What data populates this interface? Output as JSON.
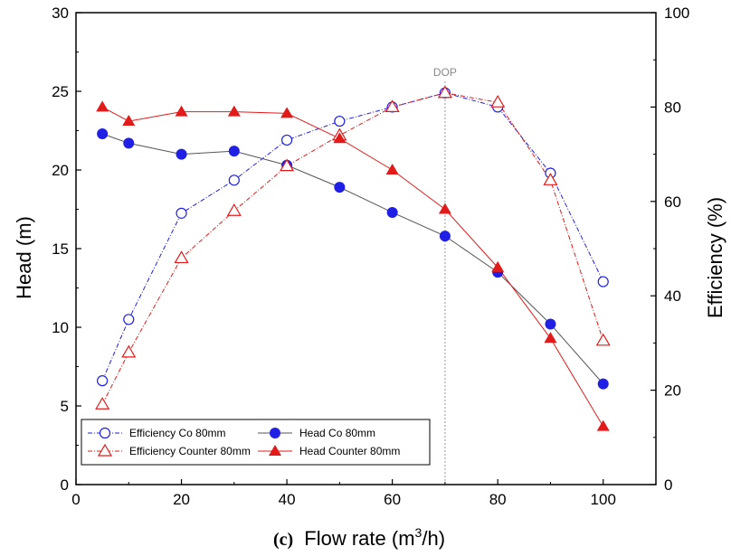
{
  "chart_data": {
    "type": "line",
    "xlabel_prefix": "(c)",
    "xlabel_main": "Flow rate (m",
    "xlabel_sup": "3",
    "xlabel_end": "/h)",
    "ylabel_left": "Head (m)",
    "ylabel_right": "Efficiency (%)",
    "xlim": [
      0,
      110
    ],
    "ylim_left": [
      0,
      30
    ],
    "ylim_right": [
      0,
      100
    ],
    "x_ticks": [
      0,
      20,
      40,
      60,
      80,
      100
    ],
    "y_left_ticks": [
      0,
      5,
      10,
      15,
      20,
      25,
      30
    ],
    "y_right_ticks": [
      0,
      20,
      40,
      60,
      80,
      100
    ],
    "grid": false,
    "legend_position": "bottom-left",
    "annotation": {
      "text": "DOP",
      "x": 70
    },
    "series": [
      {
        "name": "Efficiency Co 80mm",
        "axis": "right",
        "color": "#1f1fe6",
        "marker": "circle-open",
        "line": "dash-dot",
        "x": [
          5,
          10,
          20,
          30,
          40,
          50,
          60,
          70,
          80,
          90,
          100
        ],
        "y": [
          22,
          35,
          57.5,
          64.5,
          73,
          77,
          80,
          83,
          80,
          66,
          43
        ]
      },
      {
        "name": "Head Co 80mm",
        "axis": "left",
        "color": "#1f1fe6",
        "line_color": "#555555",
        "marker": "circle-filled",
        "line": "solid",
        "x": [
          5,
          10,
          20,
          30,
          40,
          50,
          60,
          70,
          80,
          90,
          100
        ],
        "y": [
          22.3,
          21.7,
          21.0,
          21.2,
          20.3,
          18.9,
          17.3,
          15.8,
          13.5,
          10.2,
          6.4
        ]
      },
      {
        "name": "Efficiency Counter 80mm",
        "axis": "right",
        "color": "#e31a1a",
        "marker": "triangle-open",
        "line": "dash-dot",
        "x": [
          5,
          10,
          20,
          30,
          40,
          50,
          60,
          70,
          80,
          90,
          100
        ],
        "y": [
          17,
          28,
          48,
          58,
          67.5,
          74,
          80,
          83,
          81,
          64.5,
          30.5
        ]
      },
      {
        "name": "Head Counter 80mm",
        "axis": "left",
        "color": "#e31a1a",
        "marker": "triangle-filled",
        "line": "solid",
        "x": [
          5,
          10,
          20,
          30,
          40,
          50,
          60,
          70,
          80,
          90,
          100
        ],
        "y": [
          24.0,
          23.1,
          23.7,
          23.7,
          23.6,
          22.0,
          20.0,
          17.5,
          13.8,
          9.3,
          3.7
        ]
      }
    ]
  }
}
